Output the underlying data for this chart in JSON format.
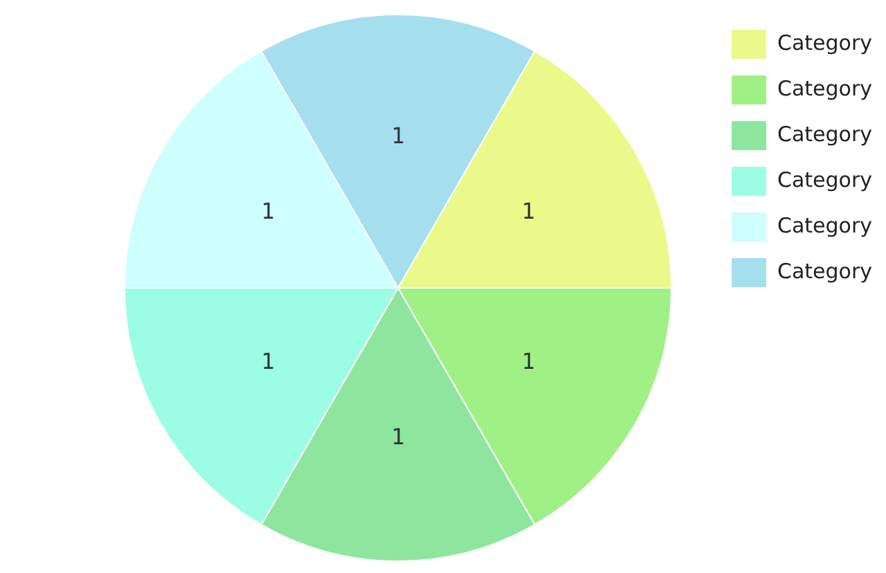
{
  "chart_data": {
    "type": "pie",
    "categories": [
      "Category",
      "Category",
      "Category",
      "Category",
      "Category",
      "Category"
    ],
    "values": [
      1,
      1,
      1,
      1,
      1,
      1
    ],
    "colors": [
      "#eaf98a",
      "#a0f185",
      "#8ee69e",
      "#9bfde4",
      "#cdfffe",
      "#a5dfee"
    ],
    "data_labels": true,
    "legend": "top right"
  }
}
